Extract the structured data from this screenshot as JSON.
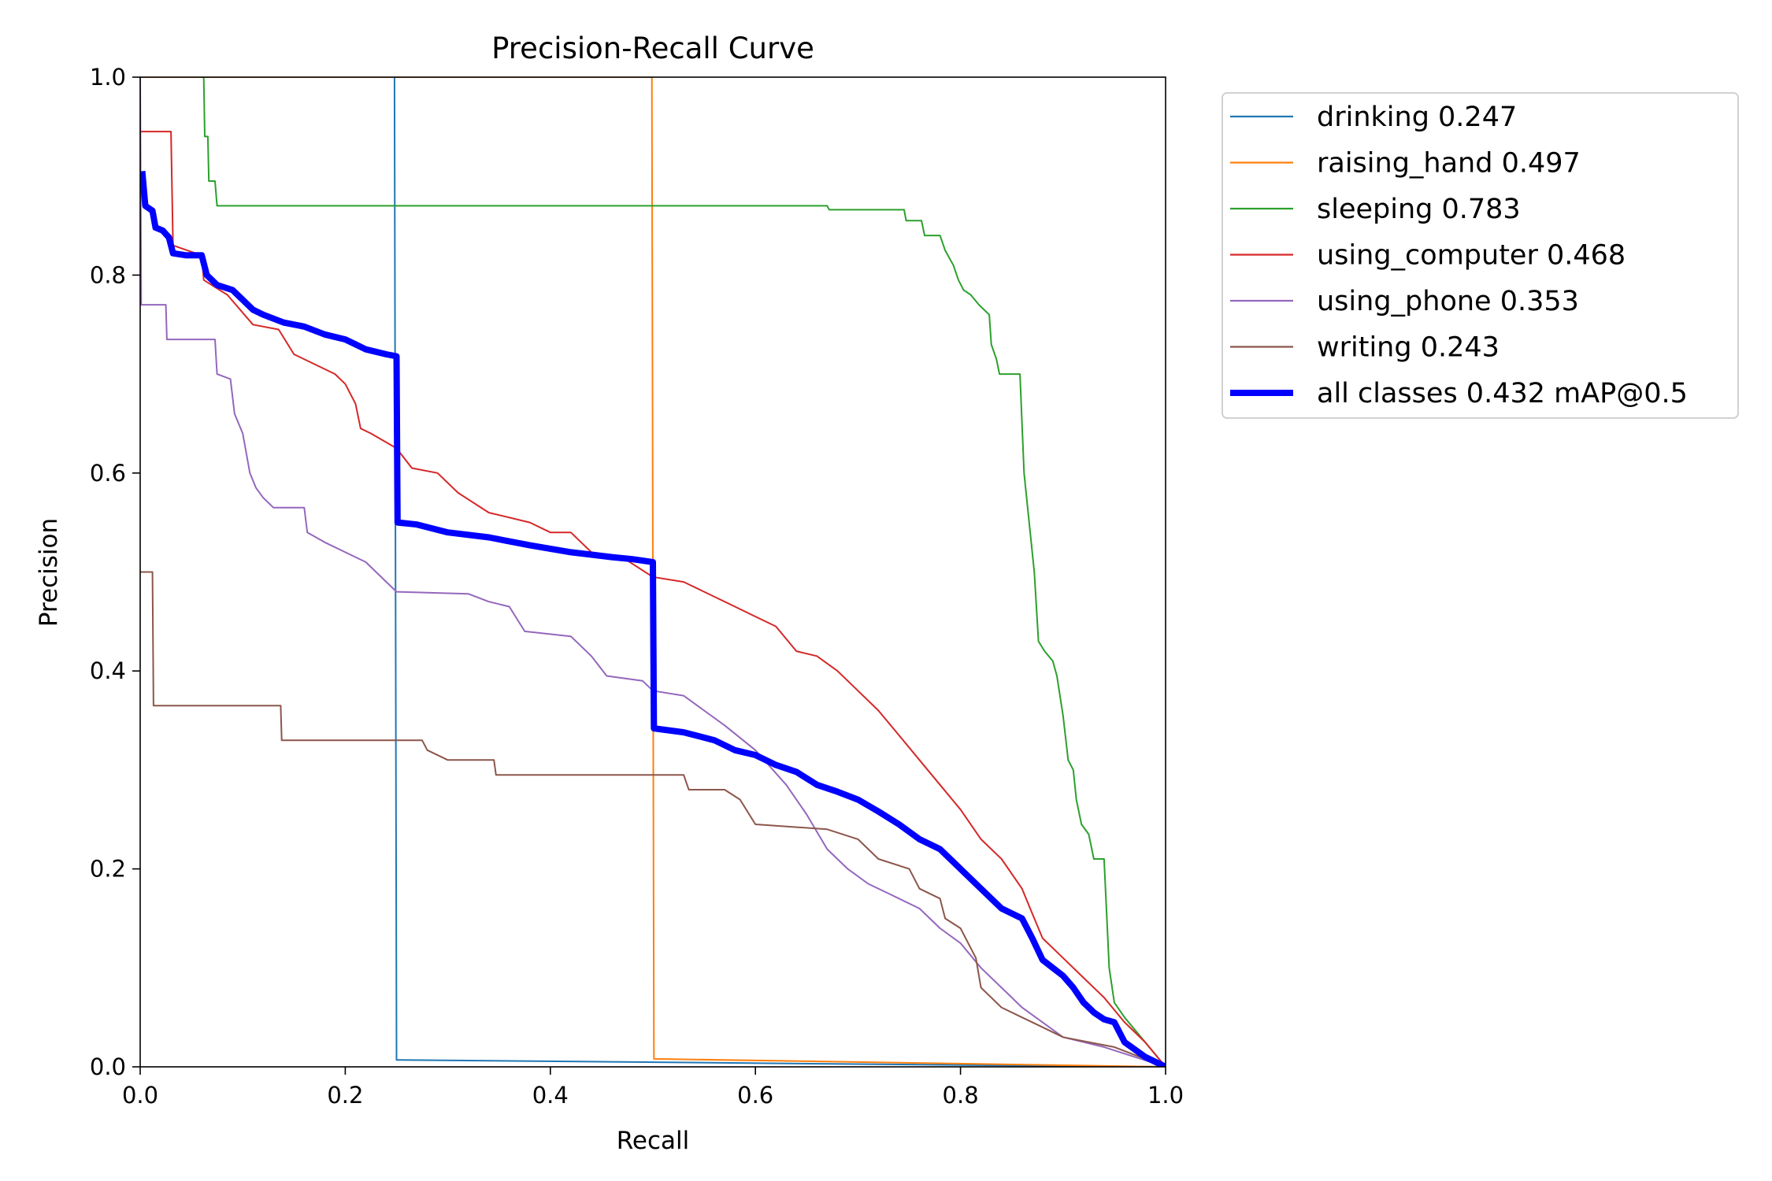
{
  "chart_data": {
    "type": "line",
    "title": "Precision-Recall Curve",
    "xlabel": "Recall",
    "ylabel": "Precision",
    "xlim": [
      0,
      1
    ],
    "ylim": [
      0,
      1
    ],
    "xticks": [
      "0.0",
      "0.2",
      "0.4",
      "0.6",
      "0.8",
      "1.0"
    ],
    "yticks": [
      "0.0",
      "0.2",
      "0.4",
      "0.6",
      "0.8",
      "1.0"
    ],
    "grid": false,
    "legend_position": "outside-top-right",
    "series": [
      {
        "name": "drinking 0.247",
        "color": "#1f77b4",
        "thick": false,
        "points": [
          [
            0.0,
            1.0
          ],
          [
            0.248,
            1.0
          ],
          [
            0.25,
            0.007
          ],
          [
            1.0,
            0.0
          ]
        ]
      },
      {
        "name": "raising_hand 0.497",
        "color": "#ff7f0e",
        "thick": false,
        "points": [
          [
            0.0,
            1.0
          ],
          [
            0.499,
            1.0
          ],
          [
            0.501,
            0.008
          ],
          [
            1.0,
            0.0
          ]
        ]
      },
      {
        "name": "sleeping 0.783",
        "color": "#2ca02c",
        "thick": false,
        "points": [
          [
            0.062,
            1.0
          ],
          [
            0.063,
            0.94
          ],
          [
            0.066,
            0.94
          ],
          [
            0.067,
            0.895
          ],
          [
            0.073,
            0.895
          ],
          [
            0.075,
            0.87
          ],
          [
            0.67,
            0.87
          ],
          [
            0.672,
            0.866
          ],
          [
            0.745,
            0.866
          ],
          [
            0.747,
            0.855
          ],
          [
            0.762,
            0.855
          ],
          [
            0.765,
            0.84
          ],
          [
            0.78,
            0.84
          ],
          [
            0.785,
            0.825
          ],
          [
            0.793,
            0.81
          ],
          [
            0.798,
            0.795
          ],
          [
            0.803,
            0.785
          ],
          [
            0.81,
            0.78
          ],
          [
            0.818,
            0.77
          ],
          [
            0.828,
            0.76
          ],
          [
            0.83,
            0.73
          ],
          [
            0.835,
            0.715
          ],
          [
            0.838,
            0.7
          ],
          [
            0.858,
            0.7
          ],
          [
            0.86,
            0.65
          ],
          [
            0.862,
            0.6
          ],
          [
            0.866,
            0.56
          ],
          [
            0.872,
            0.5
          ],
          [
            0.876,
            0.43
          ],
          [
            0.882,
            0.42
          ],
          [
            0.89,
            0.41
          ],
          [
            0.894,
            0.395
          ],
          [
            0.9,
            0.355
          ],
          [
            0.905,
            0.31
          ],
          [
            0.91,
            0.3
          ],
          [
            0.913,
            0.27
          ],
          [
            0.918,
            0.245
          ],
          [
            0.925,
            0.235
          ],
          [
            0.93,
            0.21
          ],
          [
            0.94,
            0.21
          ],
          [
            0.945,
            0.1
          ],
          [
            0.95,
            0.065
          ],
          [
            0.96,
            0.05
          ],
          [
            1.0,
            0.0
          ]
        ]
      },
      {
        "name": "using_computer 0.468",
        "color": "#d62728",
        "thick": false,
        "points": [
          [
            0.0,
            0.945
          ],
          [
            0.03,
            0.945
          ],
          [
            0.032,
            0.83
          ],
          [
            0.06,
            0.82
          ],
          [
            0.062,
            0.795
          ],
          [
            0.085,
            0.78
          ],
          [
            0.11,
            0.75
          ],
          [
            0.135,
            0.745
          ],
          [
            0.15,
            0.72
          ],
          [
            0.17,
            0.71
          ],
          [
            0.19,
            0.7
          ],
          [
            0.2,
            0.69
          ],
          [
            0.21,
            0.67
          ],
          [
            0.215,
            0.645
          ],
          [
            0.225,
            0.64
          ],
          [
            0.25,
            0.625
          ],
          [
            0.265,
            0.605
          ],
          [
            0.29,
            0.6
          ],
          [
            0.31,
            0.58
          ],
          [
            0.34,
            0.56
          ],
          [
            0.38,
            0.55
          ],
          [
            0.4,
            0.54
          ],
          [
            0.42,
            0.54
          ],
          [
            0.44,
            0.52
          ],
          [
            0.47,
            0.515
          ],
          [
            0.5,
            0.495
          ],
          [
            0.53,
            0.49
          ],
          [
            0.56,
            0.475
          ],
          [
            0.58,
            0.465
          ],
          [
            0.6,
            0.455
          ],
          [
            0.62,
            0.445
          ],
          [
            0.64,
            0.42
          ],
          [
            0.66,
            0.415
          ],
          [
            0.68,
            0.4
          ],
          [
            0.7,
            0.38
          ],
          [
            0.72,
            0.36
          ],
          [
            0.74,
            0.335
          ],
          [
            0.76,
            0.31
          ],
          [
            0.78,
            0.285
          ],
          [
            0.8,
            0.26
          ],
          [
            0.82,
            0.23
          ],
          [
            0.84,
            0.21
          ],
          [
            0.86,
            0.18
          ],
          [
            0.87,
            0.155
          ],
          [
            0.88,
            0.13
          ],
          [
            0.9,
            0.11
          ],
          [
            0.92,
            0.09
          ],
          [
            0.94,
            0.07
          ],
          [
            0.96,
            0.045
          ],
          [
            0.98,
            0.025
          ],
          [
            1.0,
            0.0
          ]
        ]
      },
      {
        "name": "using_phone 0.353",
        "color": "#9467bd",
        "thick": false,
        "points": [
          [
            0.0,
            1.0
          ],
          [
            0.001,
            0.77
          ],
          [
            0.025,
            0.77
          ],
          [
            0.026,
            0.735
          ],
          [
            0.073,
            0.735
          ],
          [
            0.075,
            0.7
          ],
          [
            0.088,
            0.695
          ],
          [
            0.092,
            0.66
          ],
          [
            0.1,
            0.64
          ],
          [
            0.107,
            0.6
          ],
          [
            0.113,
            0.585
          ],
          [
            0.12,
            0.575
          ],
          [
            0.13,
            0.565
          ],
          [
            0.16,
            0.565
          ],
          [
            0.163,
            0.54
          ],
          [
            0.18,
            0.53
          ],
          [
            0.2,
            0.52
          ],
          [
            0.22,
            0.51
          ],
          [
            0.25,
            0.48
          ],
          [
            0.32,
            0.478
          ],
          [
            0.34,
            0.47
          ],
          [
            0.36,
            0.465
          ],
          [
            0.375,
            0.44
          ],
          [
            0.42,
            0.435
          ],
          [
            0.44,
            0.415
          ],
          [
            0.455,
            0.395
          ],
          [
            0.49,
            0.39
          ],
          [
            0.5,
            0.38
          ],
          [
            0.53,
            0.375
          ],
          [
            0.55,
            0.36
          ],
          [
            0.57,
            0.345
          ],
          [
            0.6,
            0.32
          ],
          [
            0.63,
            0.285
          ],
          [
            0.65,
            0.255
          ],
          [
            0.67,
            0.22
          ],
          [
            0.69,
            0.2
          ],
          [
            0.71,
            0.185
          ],
          [
            0.73,
            0.175
          ],
          [
            0.76,
            0.16
          ],
          [
            0.78,
            0.14
          ],
          [
            0.8,
            0.125
          ],
          [
            0.82,
            0.1
          ],
          [
            0.84,
            0.08
          ],
          [
            0.86,
            0.06
          ],
          [
            0.88,
            0.045
          ],
          [
            0.9,
            0.03
          ],
          [
            0.94,
            0.02
          ],
          [
            1.0,
            0.0
          ]
        ]
      },
      {
        "name": "writing 0.243",
        "color": "#8c564b",
        "thick": false,
        "points": [
          [
            0.0,
            0.5
          ],
          [
            0.012,
            0.5
          ],
          [
            0.013,
            0.365
          ],
          [
            0.137,
            0.365
          ],
          [
            0.138,
            0.33
          ],
          [
            0.275,
            0.33
          ],
          [
            0.28,
            0.32
          ],
          [
            0.3,
            0.31
          ],
          [
            0.345,
            0.31
          ],
          [
            0.347,
            0.295
          ],
          [
            0.53,
            0.295
          ],
          [
            0.535,
            0.28
          ],
          [
            0.57,
            0.28
          ],
          [
            0.585,
            0.27
          ],
          [
            0.6,
            0.245
          ],
          [
            0.67,
            0.24
          ],
          [
            0.7,
            0.23
          ],
          [
            0.72,
            0.21
          ],
          [
            0.75,
            0.2
          ],
          [
            0.76,
            0.18
          ],
          [
            0.78,
            0.17
          ],
          [
            0.785,
            0.15
          ],
          [
            0.8,
            0.14
          ],
          [
            0.815,
            0.11
          ],
          [
            0.82,
            0.08
          ],
          [
            0.84,
            0.06
          ],
          [
            0.86,
            0.05
          ],
          [
            0.88,
            0.04
          ],
          [
            0.9,
            0.03
          ],
          [
            0.95,
            0.02
          ],
          [
            1.0,
            0.0
          ]
        ]
      },
      {
        "name": "all classes 0.432 mAP@0.5",
        "color": "#0000ff",
        "thick": true,
        "points": [
          [
            0.002,
            0.905
          ],
          [
            0.005,
            0.87
          ],
          [
            0.012,
            0.865
          ],
          [
            0.015,
            0.848
          ],
          [
            0.022,
            0.845
          ],
          [
            0.028,
            0.838
          ],
          [
            0.032,
            0.822
          ],
          [
            0.045,
            0.82
          ],
          [
            0.06,
            0.82
          ],
          [
            0.065,
            0.8
          ],
          [
            0.075,
            0.79
          ],
          [
            0.09,
            0.785
          ],
          [
            0.1,
            0.775
          ],
          [
            0.11,
            0.765
          ],
          [
            0.12,
            0.76
          ],
          [
            0.14,
            0.752
          ],
          [
            0.16,
            0.748
          ],
          [
            0.18,
            0.74
          ],
          [
            0.2,
            0.735
          ],
          [
            0.21,
            0.73
          ],
          [
            0.22,
            0.725
          ],
          [
            0.24,
            0.72
          ],
          [
            0.25,
            0.718
          ],
          [
            0.251,
            0.55
          ],
          [
            0.27,
            0.548
          ],
          [
            0.3,
            0.54
          ],
          [
            0.34,
            0.535
          ],
          [
            0.38,
            0.527
          ],
          [
            0.42,
            0.52
          ],
          [
            0.46,
            0.515
          ],
          [
            0.48,
            0.513
          ],
          [
            0.5,
            0.51
          ],
          [
            0.501,
            0.342
          ],
          [
            0.53,
            0.338
          ],
          [
            0.56,
            0.33
          ],
          [
            0.58,
            0.32
          ],
          [
            0.6,
            0.315
          ],
          [
            0.62,
            0.305
          ],
          [
            0.64,
            0.298
          ],
          [
            0.66,
            0.285
          ],
          [
            0.68,
            0.278
          ],
          [
            0.7,
            0.27
          ],
          [
            0.72,
            0.258
          ],
          [
            0.74,
            0.245
          ],
          [
            0.76,
            0.23
          ],
          [
            0.78,
            0.22
          ],
          [
            0.8,
            0.2
          ],
          [
            0.82,
            0.18
          ],
          [
            0.84,
            0.16
          ],
          [
            0.86,
            0.15
          ],
          [
            0.87,
            0.13
          ],
          [
            0.88,
            0.108
          ],
          [
            0.89,
            0.1
          ],
          [
            0.9,
            0.092
          ],
          [
            0.91,
            0.08
          ],
          [
            0.92,
            0.065
          ],
          [
            0.93,
            0.055
          ],
          [
            0.94,
            0.048
          ],
          [
            0.95,
            0.045
          ],
          [
            0.96,
            0.025
          ],
          [
            0.98,
            0.01
          ],
          [
            1.0,
            0.0
          ]
        ]
      }
    ]
  }
}
